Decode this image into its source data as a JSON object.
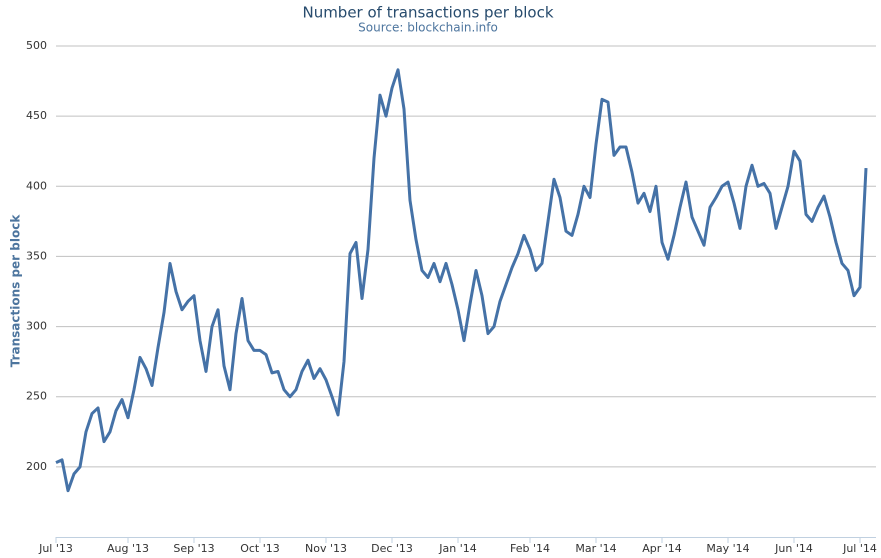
{
  "chart_data": {
    "type": "line",
    "title": "Number of transactions per block",
    "subtitle": "Source: blockchain.info",
    "y_label": "Transactions per block",
    "categories": [
      "Jul '13",
      null,
      null,
      null,
      null,
      null,
      null,
      null,
      null,
      null,
      null,
      null,
      "Aug '13",
      null,
      null,
      null,
      null,
      null,
      null,
      null,
      null,
      null,
      null,
      "Sep '13",
      null,
      null,
      null,
      null,
      null,
      null,
      null,
      null,
      null,
      null,
      "Oct '13",
      null,
      null,
      null,
      null,
      null,
      null,
      null,
      null,
      null,
      null,
      "Nov '13",
      null,
      null,
      null,
      null,
      null,
      null,
      null,
      null,
      null,
      null,
      "Dec '13",
      null,
      null,
      null,
      null,
      null,
      null,
      null,
      null,
      null,
      null,
      "Jan '14",
      null,
      null,
      null,
      null,
      null,
      null,
      null,
      null,
      null,
      null,
      null,
      "Feb '14",
      null,
      null,
      null,
      null,
      null,
      null,
      null,
      null,
      null,
      null,
      "Mar '14",
      null,
      null,
      null,
      null,
      null,
      null,
      null,
      null,
      null,
      null,
      "Apr '14",
      null,
      null,
      null,
      null,
      null,
      null,
      null,
      null,
      null,
      null,
      "May '14",
      null,
      null,
      null,
      null,
      null,
      null,
      null,
      null,
      null,
      null,
      "Jun '14",
      null,
      null,
      null,
      null,
      null,
      null,
      null,
      null,
      null,
      null,
      "Jul '14",
      null
    ],
    "series": [
      {
        "name": "Transactions per block",
        "color": "#4572a7",
        "values": [
          203,
          205,
          183,
          195,
          200,
          225,
          238,
          242,
          218,
          225,
          240,
          248,
          235,
          255,
          278,
          270,
          258,
          285,
          310,
          345,
          325,
          312,
          318,
          322,
          290,
          268,
          300,
          312,
          272,
          255,
          295,
          320,
          290,
          283,
          283,
          280,
          267,
          268,
          255,
          250,
          255,
          268,
          276,
          263,
          270,
          262,
          250,
          237,
          275,
          352,
          360,
          320,
          355,
          420,
          465,
          450,
          470,
          483,
          455,
          390,
          362,
          340,
          335,
          345,
          332,
          345,
          330,
          312,
          290,
          316,
          340,
          322,
          295,
          300,
          318,
          330,
          342,
          352,
          365,
          355,
          340,
          345,
          375,
          405,
          392,
          368,
          365,
          380,
          400,
          392,
          430,
          462,
          460,
          422,
          428,
          428,
          410,
          388,
          395,
          382,
          400,
          360,
          348,
          365,
          385,
          403,
          378,
          368,
          358,
          385,
          392,
          400,
          403,
          388,
          370,
          400,
          415,
          400,
          402,
          395,
          370,
          385,
          400,
          425,
          418,
          380,
          375,
          385,
          393,
          378,
          360,
          345,
          340,
          322,
          328,
          413
        ]
      }
    ],
    "ylim": [
      150,
      500
    ],
    "yticks": [
      200,
      250,
      300,
      350,
      400,
      450,
      500
    ],
    "grid": true
  }
}
